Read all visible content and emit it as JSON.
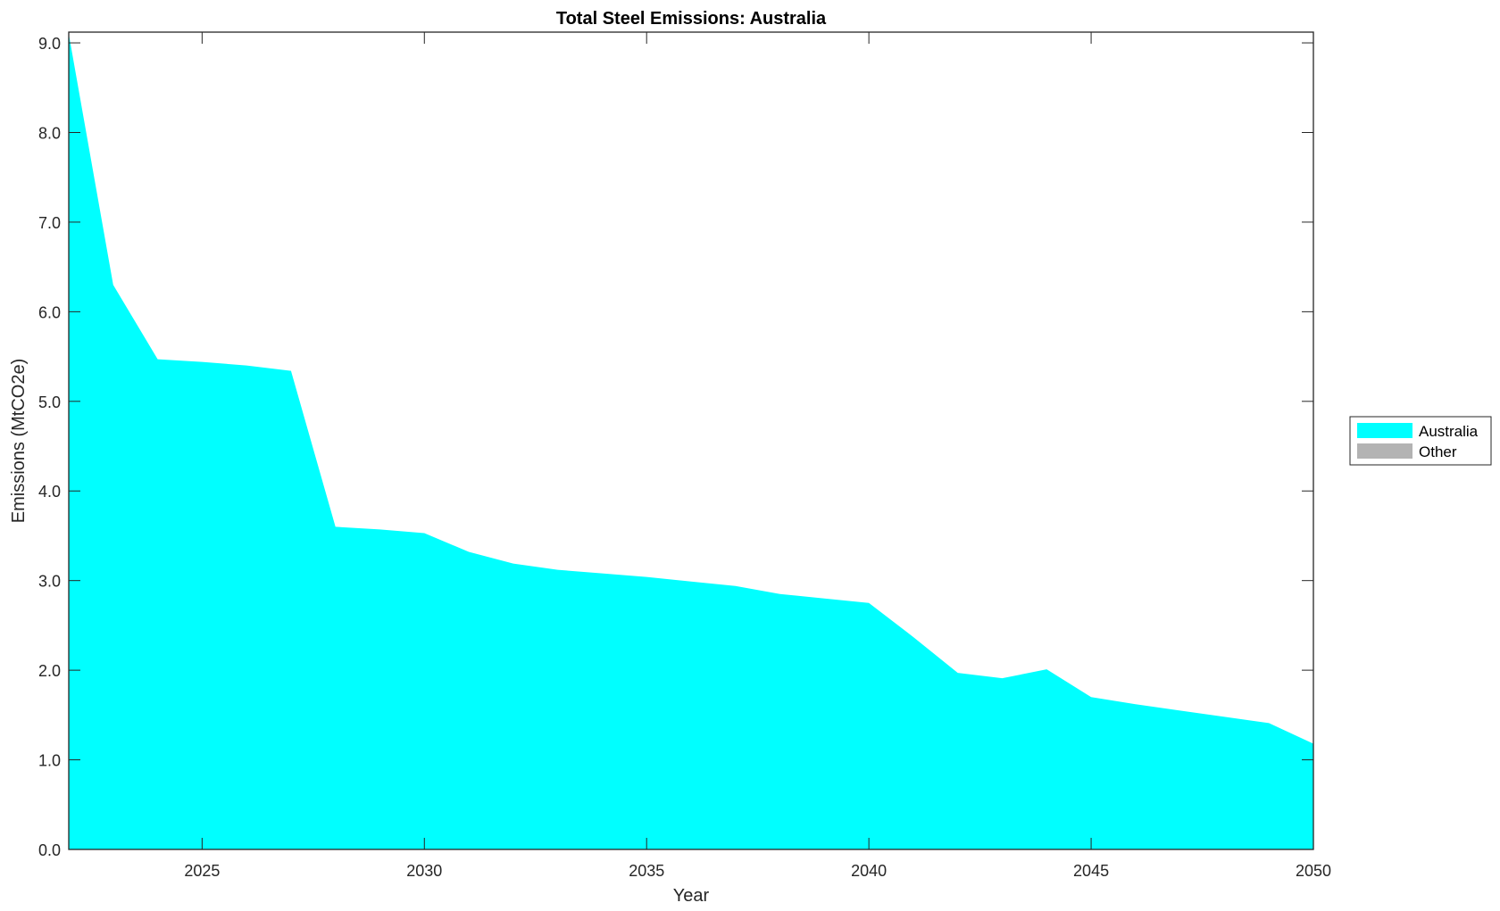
{
  "chart_data": {
    "type": "area",
    "title": "Total Steel Emissions: Australia",
    "xlabel": "Year",
    "ylabel": "Emissions (MtCO2e)",
    "xlim": [
      2022,
      2050
    ],
    "ylim": [
      0,
      9.12
    ],
    "xticks": [
      2025,
      2030,
      2035,
      2040,
      2045,
      2050
    ],
    "yticks": [
      0,
      1,
      2,
      3,
      4,
      5,
      6,
      7,
      8,
      9
    ],
    "ytick_labels": [
      "0.0",
      "1.0",
      "2.0",
      "3.0",
      "4.0",
      "5.0",
      "6.0",
      "7.0",
      "8.0",
      "9.0"
    ],
    "xtick_labels": [
      "2025",
      "2030",
      "2035",
      "2040",
      "2045",
      "2050"
    ],
    "grid": false,
    "legend_position": "right",
    "x": [
      2022,
      2023,
      2024,
      2025,
      2026,
      2027,
      2028,
      2029,
      2030,
      2031,
      2032,
      2033,
      2034,
      2035,
      2036,
      2037,
      2038,
      2039,
      2040,
      2041,
      2042,
      2043,
      2044,
      2045,
      2046,
      2047,
      2048,
      2049,
      2050
    ],
    "series": [
      {
        "name": "Australia",
        "color": "#00ffff",
        "values": [
          9.1,
          6.3,
          5.47,
          5.44,
          5.4,
          5.34,
          3.6,
          3.57,
          3.53,
          3.32,
          3.19,
          3.12,
          3.08,
          3.04,
          2.99,
          2.94,
          2.85,
          2.8,
          2.75,
          2.37,
          1.97,
          1.91,
          2.01,
          1.7,
          1.62,
          1.55,
          1.48,
          1.41,
          1.18
        ]
      },
      {
        "name": "Other",
        "color": "#b3b3b3",
        "values": [
          0,
          0,
          0,
          0,
          0,
          0,
          0,
          0,
          0,
          0,
          0,
          0,
          0,
          0,
          0,
          0,
          0,
          0,
          0,
          0,
          0,
          0,
          0,
          0,
          0,
          0,
          0,
          0,
          0
        ]
      }
    ]
  }
}
